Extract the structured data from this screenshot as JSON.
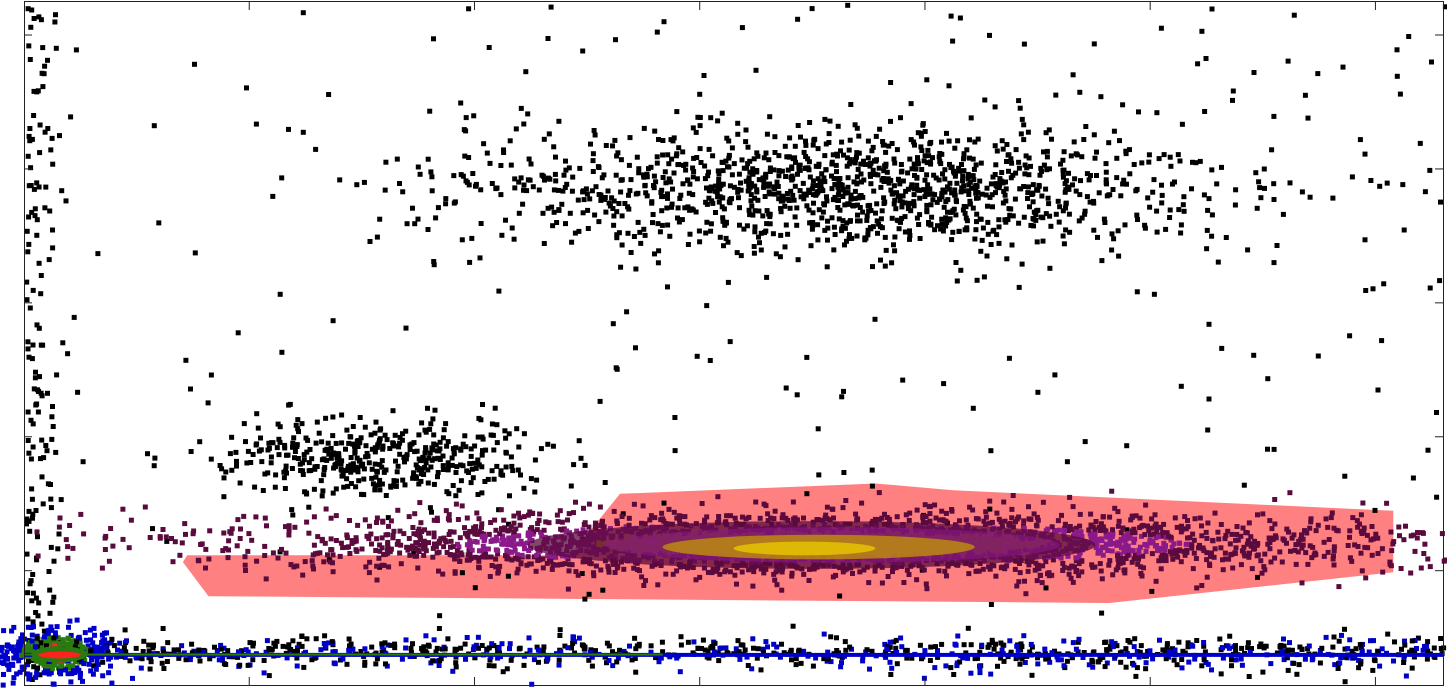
{
  "chart_data": {
    "type": "heatmap",
    "title": "",
    "xlabel": "",
    "ylabel": "",
    "grid": false,
    "legend": "none",
    "x_ticks": 6,
    "y_ticks": 5,
    "colors": {
      "sparse": "#000000",
      "gate_fill": "#ff8080",
      "density_low": "#0000c8",
      "density_mid": "#5a0a3c",
      "density_purple": "#8a1a8a",
      "density_high": "#c8a000",
      "density_peak": "#e8c800",
      "baseline_line": "#2a7a10",
      "core_red": "#ff2020"
    },
    "gate": {
      "label": "",
      "shape": "polygon",
      "points": [
        [
          0.115,
          0.81
        ],
        [
          0.385,
          0.81
        ],
        [
          0.42,
          0.72
        ],
        [
          0.6,
          0.705
        ],
        [
          0.655,
          0.715
        ],
        [
          0.965,
          0.745
        ],
        [
          0.965,
          0.835
        ],
        [
          0.765,
          0.88
        ],
        [
          0.455,
          0.875
        ],
        [
          0.13,
          0.87
        ],
        [
          0.112,
          0.82
        ]
      ]
    },
    "populations": [
      {
        "name": "",
        "cx": 0.58,
        "cy": 0.27,
        "sx": 0.13,
        "sy": 0.045,
        "density": "sparse"
      },
      {
        "name": "",
        "cx": 0.25,
        "cy": 0.665,
        "sx": 0.055,
        "sy": 0.03,
        "density": "sparse"
      },
      {
        "name": "",
        "cx": 0.56,
        "cy": 0.79,
        "sx": 0.2,
        "sy": 0.022,
        "density": "dense"
      },
      {
        "name": "",
        "cx": 0.02,
        "cy": 0.95,
        "sx": 0.02,
        "sy": 0.02,
        "density": "dense"
      }
    ]
  }
}
